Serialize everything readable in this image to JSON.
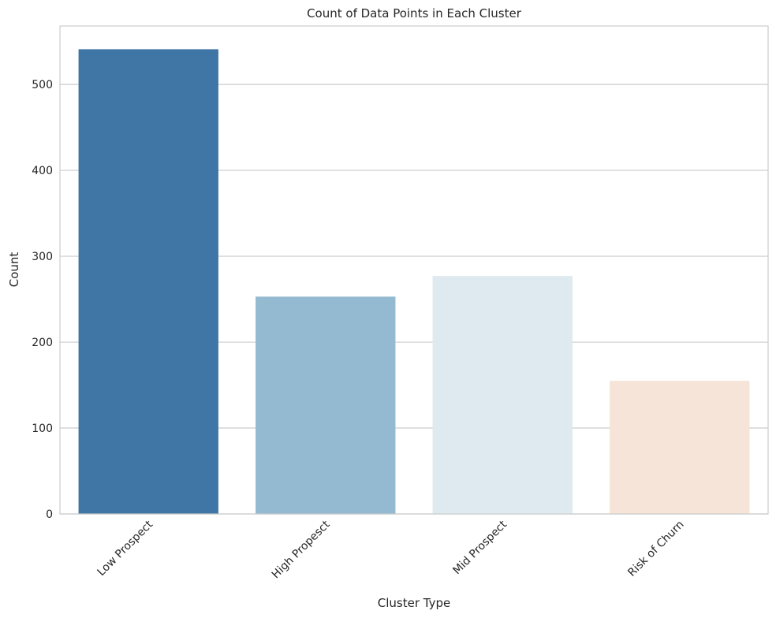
{
  "chart_data": {
    "type": "bar",
    "title": "Count of Data Points in Each Cluster",
    "xlabel": "Cluster Type",
    "ylabel": "Count",
    "categories": [
      "Low Prospect",
      "High Propesct",
      "Mid Prospect",
      "Risk of Churn"
    ],
    "values": [
      541,
      253,
      277,
      155
    ],
    "ylim": [
      0,
      568
    ],
    "yticks": [
      0,
      100,
      200,
      300,
      400,
      500
    ],
    "grid": "horizontal",
    "colors": [
      "#3f76a6",
      "#93bad0",
      "#deeaf0",
      "#f6e4d8"
    ]
  }
}
